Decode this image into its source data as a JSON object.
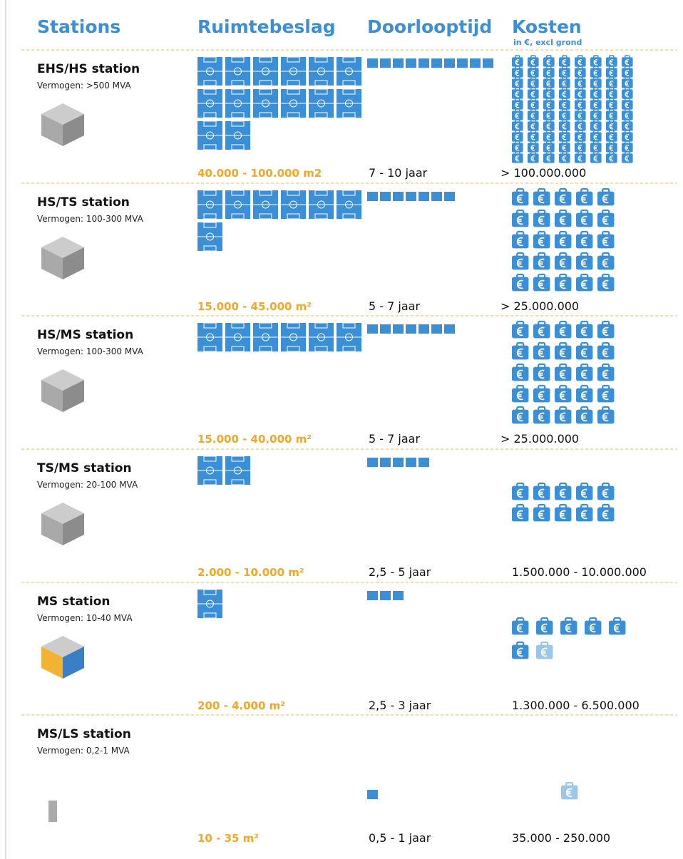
{
  "header": {
    "stations": "Stations",
    "space": "Ruimtebeslag",
    "time": "Doorlooptijd",
    "cost": "Kosten",
    "cost_note": "in €, excl grond"
  },
  "rows": [
    {
      "title": "EHS/HS station",
      "subtitle": "Vermogen: >500 MVA",
      "area": "40.000 - 100.000 m2",
      "duration": "7 - 10 jaar",
      "cost": "> 100.000.000",
      "fields": 14,
      "time_blocks": 10,
      "cost_icons": 80
    },
    {
      "title": "HS/TS station",
      "subtitle": "Vermogen: 100-300 MVA",
      "area": "15.000 - 45.000 m²",
      "duration": "5 - 7 jaar",
      "cost": "> 25.000.000",
      "fields": 7,
      "time_blocks": 7,
      "cost_icons": 25
    },
    {
      "title": "HS/MS station",
      "subtitle": "Vermogen: 100-300 MVA",
      "area": "15.000 - 40.000 m²",
      "duration": "5 - 7 jaar",
      "cost": "> 25.000.000",
      "fields": 6,
      "time_blocks": 7,
      "cost_icons": 25
    },
    {
      "title": "TS/MS station",
      "subtitle": "Vermogen: 20-100 MVA",
      "area": "2.000 - 10.000 m²",
      "duration": "2,5 - 5 jaar",
      "cost": "1.500.000 - 10.000.000",
      "fields": 2,
      "time_blocks": 5,
      "cost_icons": 10
    },
    {
      "title": "MS station",
      "subtitle": "Vermogen: 10-40 MVA",
      "area": "200 - 4.000 m²",
      "duration": "2,5 - 3 jaar",
      "cost": "1.300.000 - 6.500.000",
      "fields": 1,
      "time_blocks": 3,
      "cost_icons": 6.5
    },
    {
      "title": "MS/LS station",
      "subtitle": "Vermogen: 0,2-1 MVA",
      "area": "10 - 35 m²",
      "duration": "0,5 - 1 jaar",
      "cost": "35.000 - 250.000",
      "fields": 0,
      "time_blocks": 1,
      "cost_icons": 0.5
    }
  ]
}
